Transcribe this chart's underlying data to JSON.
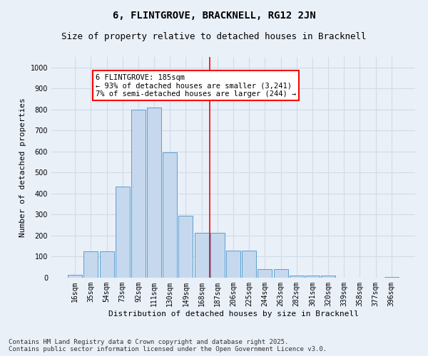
{
  "title": "6, FLINTGROVE, BRACKNELL, RG12 2JN",
  "subtitle": "Size of property relative to detached houses in Bracknell",
  "xlabel": "Distribution of detached houses by size in Bracknell",
  "ylabel": "Number of detached properties",
  "categories": [
    "16sqm",
    "35sqm",
    "54sqm",
    "73sqm",
    "92sqm",
    "111sqm",
    "130sqm",
    "149sqm",
    "168sqm",
    "187sqm",
    "206sqm",
    "225sqm",
    "244sqm",
    "263sqm",
    "282sqm",
    "301sqm",
    "320sqm",
    "339sqm",
    "358sqm",
    "377sqm",
    "396sqm"
  ],
  "values": [
    15,
    125,
    125,
    435,
    800,
    810,
    595,
    295,
    215,
    215,
    130,
    130,
    40,
    40,
    10,
    10,
    10,
    0,
    0,
    0,
    5
  ],
  "bar_color": "#c5d8ed",
  "bar_edge_color": "#5a9fd4",
  "grid_color": "#d0dce8",
  "bg_color": "#eaf0f8",
  "vline_color": "red",
  "annotation_text": "6 FLINTGROVE: 185sqm\n← 93% of detached houses are smaller (3,241)\n7% of semi-detached houses are larger (244) →",
  "annotation_box_color": "white",
  "annotation_box_edge": "red",
  "ylim": [
    0,
    1050
  ],
  "yticks": [
    0,
    100,
    200,
    300,
    400,
    500,
    600,
    700,
    800,
    900,
    1000
  ],
  "footnote": "Contains HM Land Registry data © Crown copyright and database right 2025.\nContains public sector information licensed under the Open Government Licence v3.0.",
  "title_fontsize": 10,
  "subtitle_fontsize": 9,
  "axis_label_fontsize": 8,
  "tick_fontsize": 7,
  "annotation_fontsize": 7.5,
  "footnote_fontsize": 6.5
}
